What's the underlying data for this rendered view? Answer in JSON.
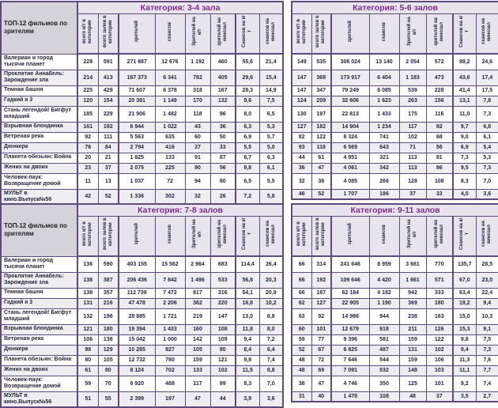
{
  "corner_title": "ТОП-12 фильмов по зрителям",
  "columns": [
    "всего к/т в категории",
    "всего залов в категории",
    "зрителей",
    "сеансов",
    "Зрителей на к/т",
    "зрителей на кинозал",
    "Сеансов на к/т",
    "сеансов на кинозал"
  ],
  "films": [
    "Валериан и город тысячи планет",
    "Проклятие Аннабель: Зарождение зла",
    "Темная башня",
    "Гадкий я 3",
    "Стань легендой! Бигфут младший",
    "Взрывная блондинка",
    "Ветреная река",
    "Дюнкерк",
    "Планета обезьян: Война",
    "Жених на двоих",
    "Человек-паук: Возвращение домой",
    "МУЛЬТ в кино.Выпуск№56"
  ],
  "colors": {
    "border": "#5f4a7d",
    "category_text": "#7c2d8c",
    "header_background": "#e7e4ed",
    "corner_background": "#d4d3d9",
    "stripe_background": "#eeedf2",
    "value_text": "#1f2240"
  },
  "tables": [
    {
      "category": "Категория: 3-4 зала",
      "has_film_column": true,
      "rows": [
        [
          "228",
          "591",
          "271 887",
          "12 676",
          "1 192",
          "460",
          "55,6",
          "21,4"
        ],
        [
          "214",
          "413",
          "167 373",
          "6 341",
          "782",
          "405",
          "29,6",
          "15,4"
        ],
        [
          "225",
          "429",
          "71 607",
          "6 378",
          "318",
          "167",
          "28,3",
          "14,9"
        ],
        [
          "120",
          "154",
          "20 381",
          "1 149",
          "170",
          "132",
          "9,6",
          "7,5"
        ],
        [
          "185",
          "229",
          "21 906",
          "1 482",
          "118",
          "96",
          "8,0",
          "6,5"
        ],
        [
          "161",
          "192",
          "6 944",
          "1 022",
          "43",
          "36",
          "6,3",
          "5,3"
        ],
        [
          "92",
          "111",
          "5 563",
          "635",
          "60",
          "50",
          "6,9",
          "5,7"
        ],
        [
          "76",
          "84",
          "2 794",
          "416",
          "37",
          "33",
          "5,5",
          "5,0"
        ],
        [
          "20",
          "21",
          "1 825",
          "133",
          "91",
          "87",
          "6,7",
          "6,3"
        ],
        [
          "23",
          "37",
          "2 075",
          "225",
          "90",
          "56",
          "9,8",
          "6,1"
        ],
        [
          "11",
          "13",
          "1 037",
          "72",
          "94",
          "80",
          "6,5",
          "5,5"
        ],
        [
          "42",
          "52",
          "1 336",
          "302",
          "32",
          "26",
          "7,2",
          "5,8"
        ]
      ]
    },
    {
      "category": "Категория: 5-6 залов",
      "has_film_column": false,
      "rows": [
        [
          "149",
          "535",
          "306 024",
          "13 140",
          "2 054",
          "572",
          "88,2",
          "24,6"
        ],
        [
          "147",
          "368",
          "173 917",
          "6 404",
          "1 183",
          "473",
          "43,6",
          "17,4"
        ],
        [
          "147",
          "347",
          "79 249",
          "6 085",
          "539",
          "228",
          "41,4",
          "17,5"
        ],
        [
          "124",
          "209",
          "32 606",
          "1 623",
          "263",
          "156",
          "13,1",
          "7,8"
        ],
        [
          "130",
          "197",
          "22 813",
          "1 433",
          "175",
          "116",
          "11,0",
          "7,3"
        ],
        [
          "127",
          "182",
          "14 904",
          "1 234",
          "117",
          "82",
          "9,7",
          "6,8"
        ],
        [
          "82",
          "122",
          "8 324",
          "741",
          "102",
          "68",
          "9,0",
          "6,1"
        ],
        [
          "93",
          "118",
          "6 569",
          "643",
          "71",
          "56",
          "6,9",
          "5,4"
        ],
        [
          "44",
          "61",
          "4 951",
          "321",
          "113",
          "81",
          "7,3",
          "5,3"
        ],
        [
          "36",
          "47",
          "4 061",
          "342",
          "113",
          "86",
          "9,5",
          "7,3"
        ],
        [
          "32",
          "38",
          "4 085",
          "266",
          "128",
          "108",
          "8,3",
          "7,0"
        ],
        [
          "46",
          "52",
          "1 707",
          "186",
          "37",
          "33",
          "4,0",
          "3,6"
        ]
      ]
    },
    {
      "category": "Категория: 7-8 залов",
      "has_film_column": true,
      "rows": [
        [
          "136",
          "590",
          "403 155",
          "15 562",
          "2 964",
          "683",
          "114,4",
          "26,4"
        ],
        [
          "138",
          "387",
          "206 436",
          "7 842",
          "1 496",
          "533",
          "56,8",
          "20,3"
        ],
        [
          "138",
          "357",
          "112 739",
          "7 472",
          "817",
          "316",
          "54,1",
          "20,9"
        ],
        [
          "131",
          "216",
          "47 478",
          "2 206",
          "362",
          "220",
          "16,8",
          "10,2"
        ],
        [
          "132",
          "196",
          "28 885",
          "1 721",
          "219",
          "147",
          "13,0",
          "8,8"
        ],
        [
          "121",
          "180",
          "19 394",
          "1 433",
          "160",
          "108",
          "11,8",
          "8,0"
        ],
        [
          "106",
          "138",
          "15 042",
          "1 000",
          "142",
          "109",
          "9,4",
          "7,2"
        ],
        [
          "98",
          "129",
          "10 285",
          "827",
          "105",
          "80",
          "8,4",
          "6,4"
        ],
        [
          "80",
          "105",
          "12 732",
          "780",
          "159",
          "121",
          "9,8",
          "7,4"
        ],
        [
          "61",
          "80",
          "8 124",
          "702",
          "133",
          "102",
          "11,5",
          "8,8"
        ],
        [
          "59",
          "70",
          "6 920",
          "488",
          "117",
          "99",
          "8,3",
          "7,0"
        ],
        [
          "51",
          "55",
          "2 399",
          "197",
          "47",
          "44",
          "3,9",
          "3,6"
        ]
      ]
    },
    {
      "category": "Категория: 9-11 залов",
      "has_film_column": false,
      "rows": [
        [
          "66",
          "314",
          "241 646",
          "8 959",
          "3 661",
          "770",
          "135,7",
          "28,5"
        ],
        [
          "66",
          "192",
          "109 646",
          "4 420",
          "1 661",
          "571",
          "67,0",
          "23,0"
        ],
        [
          "66",
          "187",
          "62 184",
          "4 182",
          "942",
          "333",
          "63,4",
          "22,4"
        ],
        [
          "62",
          "127",
          "22 905",
          "1 190",
          "369",
          "180",
          "19,2",
          "9,4"
        ],
        [
          "63",
          "92",
          "14 986",
          "944",
          "238",
          "163",
          "15,0",
          "10,3"
        ],
        [
          "60",
          "101",
          "12 679",
          "918",
          "211",
          "126",
          "15,3",
          "9,1"
        ],
        [
          "59",
          "77",
          "9 396",
          "581",
          "159",
          "122",
          "9,8",
          "7,5"
        ],
        [
          "52",
          "67",
          "6 825",
          "487",
          "131",
          "102",
          "9,4",
          "7,3"
        ],
        [
          "48",
          "72",
          "7 646",
          "544",
          "159",
          "106",
          "11,3",
          "7,6"
        ],
        [
          "48",
          "69",
          "7 091",
          "532",
          "148",
          "103",
          "11,1",
          "7,7"
        ],
        [
          "38",
          "47",
          "4 746",
          "350",
          "125",
          "101",
          "9,2",
          "7,4"
        ],
        [
          "31",
          "40",
          "1 478",
          "108",
          "48",
          "37",
          "3,5",
          "2,7"
        ]
      ]
    }
  ]
}
